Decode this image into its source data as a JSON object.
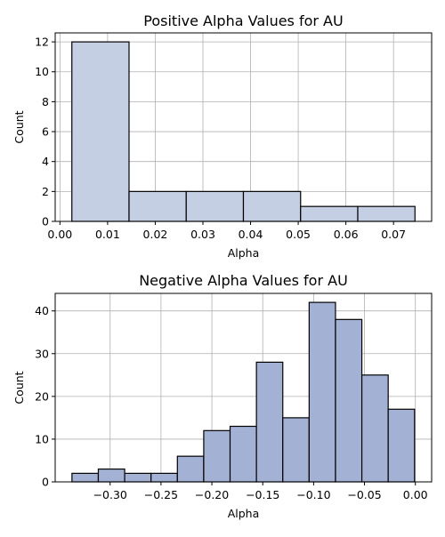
{
  "chart_data": [
    {
      "type": "bar",
      "title": "Positive Alpha Values for AU",
      "xlabel": "Alpha",
      "ylabel": "Count",
      "bins": [
        {
          "start": 0.0025,
          "end": 0.0145,
          "value": 12
        },
        {
          "start": 0.0145,
          "end": 0.0265,
          "value": 2
        },
        {
          "start": 0.0265,
          "end": 0.0385,
          "value": 2
        },
        {
          "start": 0.0385,
          "end": 0.0505,
          "value": 2
        },
        {
          "start": 0.0505,
          "end": 0.0625,
          "value": 1
        },
        {
          "start": 0.0625,
          "end": 0.0745,
          "value": 1
        }
      ],
      "xlim": [
        -0.001,
        0.078
      ],
      "ylim": [
        0,
        12.6
      ],
      "xticks": [
        0.0,
        0.01,
        0.02,
        0.03,
        0.04,
        0.05,
        0.06,
        0.07
      ],
      "xtick_labels": [
        "0.00",
        "0.01",
        "0.02",
        "0.03",
        "0.04",
        "0.05",
        "0.06",
        "0.07"
      ],
      "yticks": [
        0,
        2,
        4,
        6,
        8,
        10,
        12
      ],
      "ytick_labels": [
        "0",
        "2",
        "4",
        "6",
        "8",
        "10",
        "12"
      ],
      "grid": true,
      "bar_color": "#c5cfe4",
      "edge_color": "#000000"
    },
    {
      "type": "bar",
      "title": "Negative Alpha Values for AU",
      "xlabel": "Alpha",
      "ylabel": "Count",
      "bins": [
        {
          "start": -0.3375,
          "end": -0.3116,
          "value": 2
        },
        {
          "start": -0.3116,
          "end": -0.2857,
          "value": 3
        },
        {
          "start": -0.2857,
          "end": -0.2598,
          "value": 2
        },
        {
          "start": -0.2598,
          "end": -0.2339,
          "value": 2
        },
        {
          "start": -0.2339,
          "end": -0.208,
          "value": 6
        },
        {
          "start": -0.208,
          "end": -0.1821,
          "value": 12
        },
        {
          "start": -0.1821,
          "end": -0.1562,
          "value": 13
        },
        {
          "start": -0.1562,
          "end": -0.1303,
          "value": 28
        },
        {
          "start": -0.1303,
          "end": -0.1044,
          "value": 15
        },
        {
          "start": -0.1044,
          "end": -0.0785,
          "value": 42
        },
        {
          "start": -0.0785,
          "end": -0.0526,
          "value": 38
        },
        {
          "start": -0.0526,
          "end": -0.0267,
          "value": 25
        },
        {
          "start": -0.0267,
          "end": -0.0008,
          "value": 17
        }
      ],
      "xlim": [
        -0.354,
        0.016
      ],
      "ylim": [
        0,
        44.1
      ],
      "xticks": [
        -0.3,
        -0.25,
        -0.2,
        -0.15,
        -0.1,
        -0.05,
        0.0
      ],
      "xtick_labels": [
        "−0.30",
        "−0.25",
        "−0.20",
        "−0.15",
        "−0.10",
        "−0.05",
        "0.00"
      ],
      "yticks": [
        0,
        10,
        20,
        30,
        40
      ],
      "ytick_labels": [
        "0",
        "10",
        "20",
        "30",
        "40"
      ],
      "grid": true,
      "bar_color": "#a3b1d4",
      "edge_color": "#000000"
    }
  ]
}
